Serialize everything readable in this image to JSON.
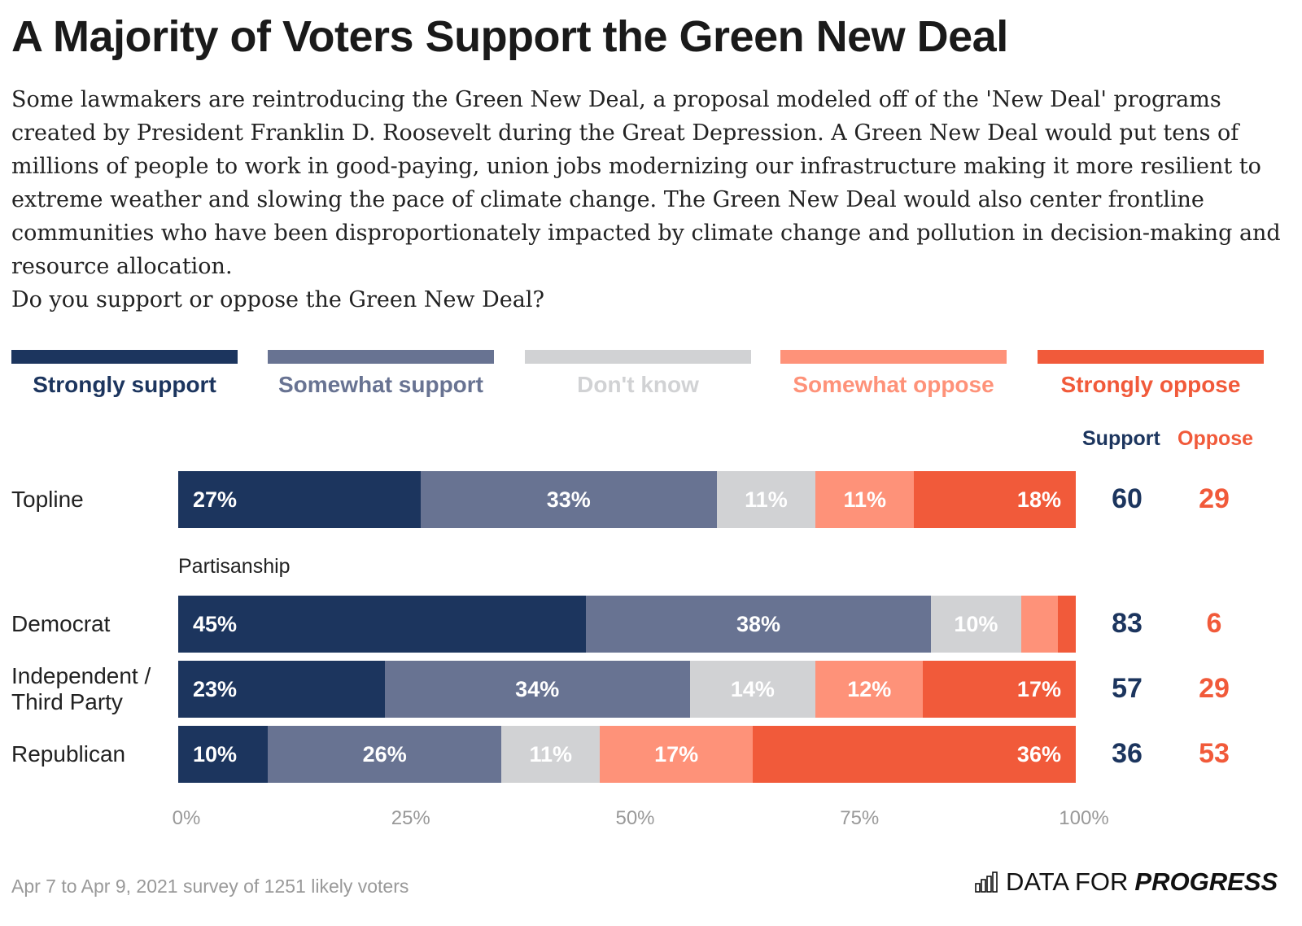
{
  "title": "A Majority of Voters Support the Green New Deal",
  "subtitle": "Some lawmakers are reintroducing the Green New Deal, a proposal modeled off of the 'New Deal' programs created by President Franklin D. Roosevelt during the Great Depression. A Green New Deal would put tens of millions of people to work in good-paying, union jobs modernizing our infrastructure making it more resilient to extreme weather and slowing the pace of climate change. The Green New Deal would also center frontline communities who have been disproportionately impacted by climate change and pollution in decision-making and resource allocation.",
  "question": "Do you support or oppose the Green New Deal?",
  "footer": "Apr 7 to Apr 9, 2021 survey of 1251 likely voters",
  "logo": {
    "text_light": "DATA FOR",
    "text_bold": "PROGRESS"
  },
  "chart_data": {
    "type": "bar",
    "stacked": true,
    "orientation": "horizontal",
    "legend_position": "top",
    "xlim": [
      0,
      100
    ],
    "xticks": [
      "0%",
      "25%",
      "50%",
      "75%",
      "100%"
    ],
    "series": [
      {
        "name": "Strongly support",
        "color": "#1c355e"
      },
      {
        "name": "Somewhat support",
        "color": "#687392"
      },
      {
        "name": "Don't know",
        "color": "#d1d2d4"
      },
      {
        "name": "Somewhat oppose",
        "color": "#fe9279"
      },
      {
        "name": "Strongly oppose",
        "color": "#f15a3a"
      }
    ],
    "summary_headers": {
      "support": "Support",
      "oppose": "Oppose"
    },
    "section_label": "Partisanship",
    "rows": [
      {
        "label": "Topline",
        "values": [
          27,
          33,
          11,
          11,
          18
        ],
        "labels": [
          "27%",
          "33%",
          "11%",
          "11%",
          "18%"
        ],
        "support": "60",
        "oppose": "29"
      },
      {
        "label": "Democrat",
        "values": [
          45,
          38,
          10,
          4,
          2
        ],
        "labels": [
          "45%",
          "38%",
          "10%",
          "",
          ""
        ],
        "support": "83",
        "oppose": "6"
      },
      {
        "label": "Independent / Third Party",
        "values": [
          23,
          34,
          14,
          12,
          17
        ],
        "labels": [
          "23%",
          "34%",
          "14%",
          "12%",
          "17%"
        ],
        "support": "57",
        "oppose": "29"
      },
      {
        "label": "Republican",
        "values": [
          10,
          26,
          11,
          17,
          36
        ],
        "labels": [
          "10%",
          "26%",
          "11%",
          "17%",
          "36%"
        ],
        "support": "36",
        "oppose": "53"
      }
    ]
  }
}
